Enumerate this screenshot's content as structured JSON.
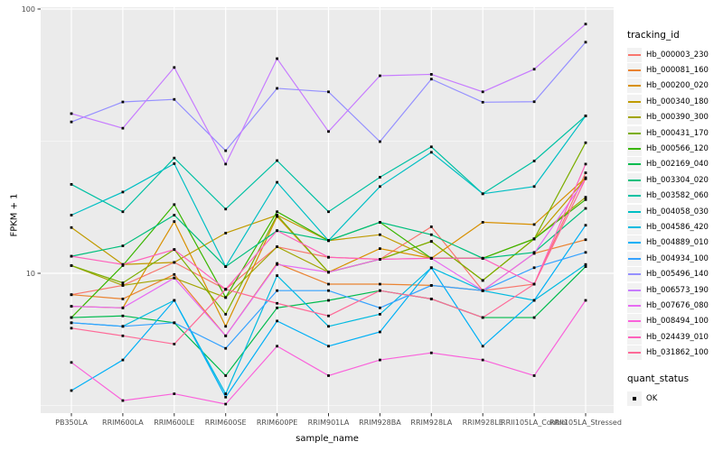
{
  "colors": {
    "panel_bg": "#EBEBEB",
    "grid_major": "#FFFFFF",
    "grid_minor": "#FFFFFF",
    "marker": "#000000",
    "tick_text": "#4D4D4D",
    "tick_mark": "#333333"
  },
  "legend": {
    "tracking_title": "tracking_id",
    "quant_title": "quant_status",
    "quant_items": [
      "OK"
    ]
  },
  "chart_data": {
    "type": "line",
    "title": "",
    "xlabel": "sample_name",
    "ylabel": "FPKM + 1",
    "y_scale": "log10",
    "ylim": [
      2.9,
      102
    ],
    "y_ticks": [
      100,
      10
    ],
    "y_minor": [
      31.62,
      3.162
    ],
    "grid": true,
    "legend_position": "right",
    "marker": "black-square",
    "categories": [
      "PB350LA",
      "RRIM600LA",
      "RRIM600LE",
      "RRIM600SE",
      "RRIM600PE",
      "RRIM901LA",
      "RRIM928BA",
      "RRIM928LA",
      "RRIM928LE",
      "RRII105LA_Control",
      "RRII105LA_Stressed"
    ],
    "series": [
      {
        "name": "Hb_000003_230",
        "color": "#F8766D",
        "values": [
          8.3,
          9.0,
          11.0,
          8.7,
          12.6,
          11.5,
          11.3,
          15.0,
          8.6,
          9.1,
          24.0
        ]
      },
      {
        "name": "Hb_000081_160",
        "color": "#EA8331",
        "values": [
          8.3,
          8.0,
          9.9,
          5.8,
          10.9,
          9.1,
          9.1,
          9.0,
          8.6,
          11.9,
          13.4
        ]
      },
      {
        "name": "Hb_000200_020",
        "color": "#D89000",
        "values": [
          7.5,
          7.4,
          15.7,
          6.3,
          16.4,
          10.1,
          12.4,
          11.4,
          15.6,
          15.3,
          23.0
        ]
      },
      {
        "name": "Hb_000340_180",
        "color": "#C09B00",
        "values": [
          14.9,
          10.8,
          11.0,
          14.2,
          16.6,
          13.3,
          14.0,
          11.4,
          11.4,
          13.5,
          22.8
        ]
      },
      {
        "name": "Hb_000390_300",
        "color": "#A3A500",
        "values": [
          10.7,
          9.0,
          9.6,
          8.1,
          12.6,
          10.1,
          11.3,
          13.2,
          9.4,
          13.5,
          19.4
        ]
      },
      {
        "name": "Hb_000431_170",
        "color": "#7CAE00",
        "values": [
          10.7,
          9.2,
          12.3,
          7.0,
          16.6,
          10.1,
          11.3,
          13.2,
          9.4,
          13.5,
          31.2
        ]
      },
      {
        "name": "Hb_000566_120",
        "color": "#39B600",
        "values": [
          6.8,
          10.7,
          18.2,
          8.1,
          17.1,
          13.3,
          15.6,
          11.4,
          11.4,
          13.5,
          19.0
        ]
      },
      {
        "name": "Hb_002169_040",
        "color": "#00BB4E",
        "values": [
          6.8,
          6.9,
          6.5,
          4.1,
          7.4,
          7.9,
          8.6,
          8.0,
          6.8,
          6.8,
          10.6
        ]
      },
      {
        "name": "Hb_003304_020",
        "color": "#00BF7D",
        "values": [
          11.6,
          12.7,
          16.6,
          10.6,
          14.5,
          13.3,
          15.6,
          14.0,
          11.4,
          12.0,
          17.6
        ]
      },
      {
        "name": "Hb_003582_060",
        "color": "#00C1A3",
        "values": [
          21.7,
          17.1,
          27.3,
          17.5,
          26.7,
          17.1,
          23.1,
          30.1,
          20.0,
          26.6,
          39.4
        ]
      },
      {
        "name": "Hb_004058_030",
        "color": "#00BFC4",
        "values": [
          16.6,
          20.3,
          26.0,
          10.6,
          22.1,
          13.3,
          21.3,
          28.7,
          20.0,
          21.3,
          39.4
        ]
      },
      {
        "name": "Hb_004586_420",
        "color": "#00BAE0",
        "values": [
          6.5,
          6.3,
          7.9,
          3.5,
          9.8,
          6.3,
          7.0,
          10.5,
          8.6,
          7.9,
          10.8
        ]
      },
      {
        "name": "Hb_004889_010",
        "color": "#00B0F6",
        "values": [
          3.6,
          4.7,
          7.9,
          3.4,
          6.6,
          5.3,
          6.0,
          10.5,
          5.3,
          7.9,
          15.2
        ]
      },
      {
        "name": "Hb_004934_100",
        "color": "#35A2FF",
        "values": [
          6.5,
          6.3,
          6.5,
          5.2,
          8.6,
          8.6,
          7.4,
          9.0,
          8.6,
          10.5,
          12.0
        ]
      },
      {
        "name": "Hb_005496_140",
        "color": "#9590FF",
        "values": [
          37.4,
          44.5,
          45.5,
          29.1,
          50.1,
          48.6,
          31.5,
          54.3,
          44.4,
          44.6,
          74.9
        ]
      },
      {
        "name": "Hb_006573_190",
        "color": "#C77CFF",
        "values": [
          40.2,
          35.4,
          60.1,
          25.9,
          64.9,
          34.4,
          55.9,
          56.6,
          48.6,
          59.2,
          87.7
        ]
      },
      {
        "name": "Hb_007676_080",
        "color": "#E76BF3",
        "values": [
          7.5,
          7.4,
          9.6,
          5.8,
          10.8,
          10.1,
          11.3,
          11.4,
          8.6,
          11.9,
          22.8
        ]
      },
      {
        "name": "Hb_008494_100",
        "color": "#FA62DB",
        "values": [
          4.6,
          3.3,
          3.5,
          3.2,
          5.3,
          4.1,
          4.7,
          5.0,
          4.7,
          4.1,
          7.9
        ]
      },
      {
        "name": "Hb_024439_010",
        "color": "#FF62BC",
        "values": [
          11.6,
          10.8,
          12.3,
          8.7,
          14.5,
          11.5,
          11.3,
          11.4,
          11.4,
          9.1,
          25.9
        ]
      },
      {
        "name": "Hb_031862_100",
        "color": "#FF6A98",
        "values": [
          6.2,
          5.8,
          5.4,
          8.7,
          7.7,
          6.9,
          8.6,
          8.0,
          6.8,
          9.1,
          22.8
        ]
      }
    ]
  }
}
